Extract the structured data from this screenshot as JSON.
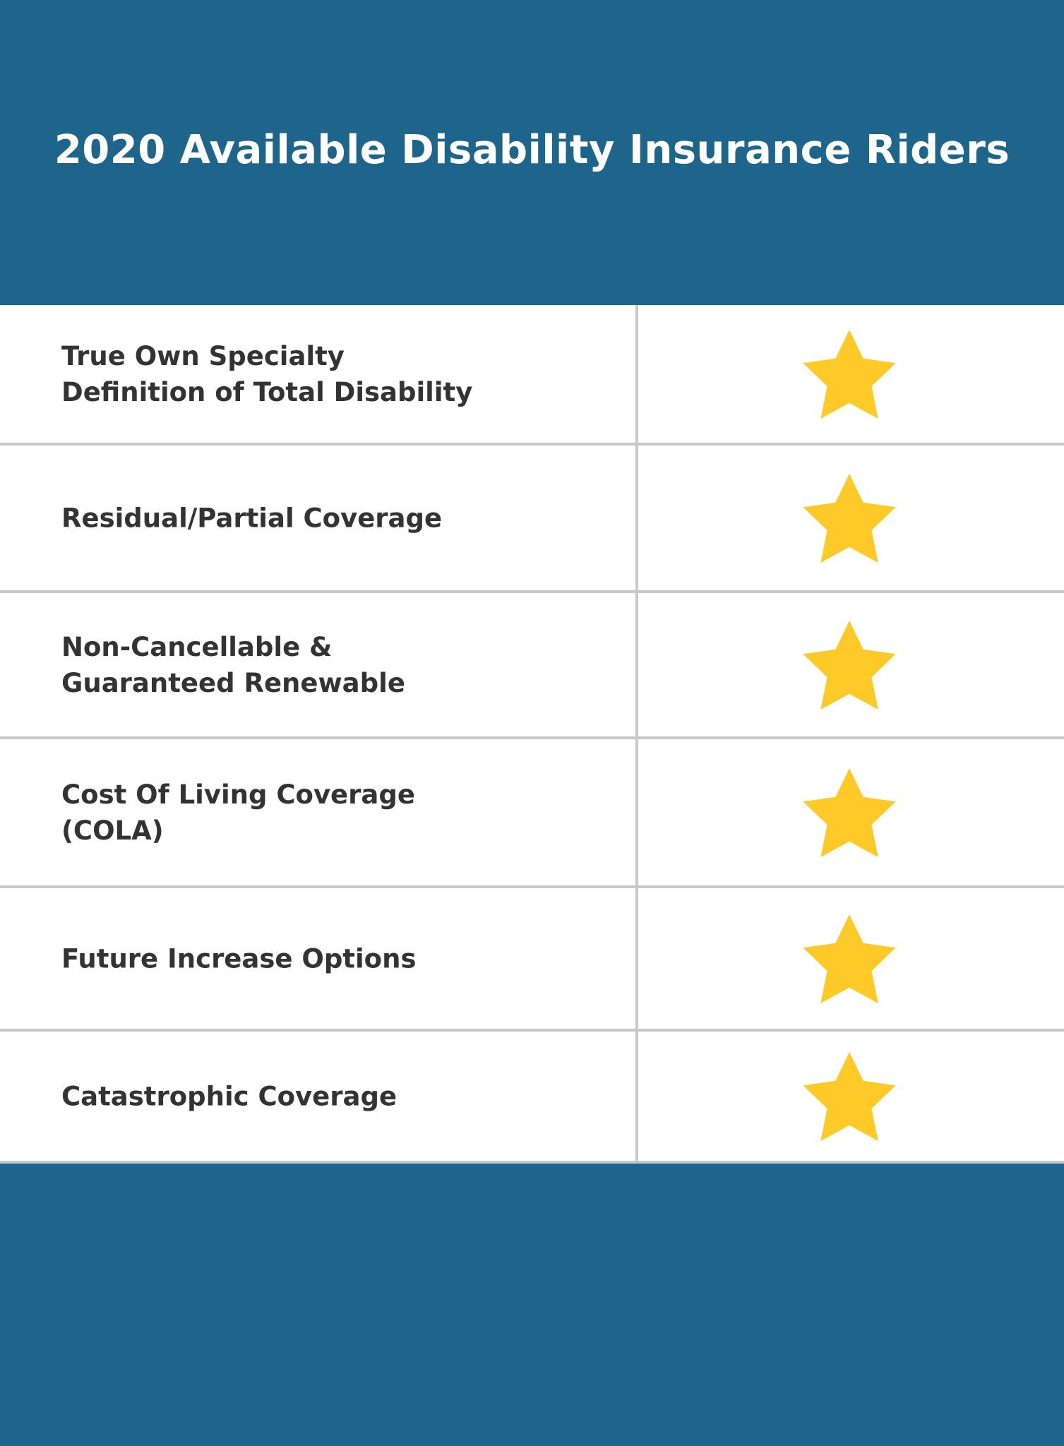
{
  "title": "2020 Available Disability Insurance Riders",
  "colors": {
    "background": "#1d658b",
    "star": "#ffca28",
    "text": "#333333",
    "divider": "#c8c8c8"
  },
  "rows": [
    {
      "label": "True Own Specialty\nDefinition of Total Disability",
      "icon": "star-icon"
    },
    {
      "label": "Residual/Partial Coverage",
      "icon": "star-icon"
    },
    {
      "label": "Non-Cancellable &\nGuaranteed Renewable",
      "icon": "star-icon"
    },
    {
      "label": "Cost Of Living Coverage\n(COLA)",
      "icon": "star-icon"
    },
    {
      "label": "Future Increase Options",
      "icon": "star-icon"
    },
    {
      "label": "Catastrophic Coverage",
      "icon": "star-icon"
    }
  ]
}
